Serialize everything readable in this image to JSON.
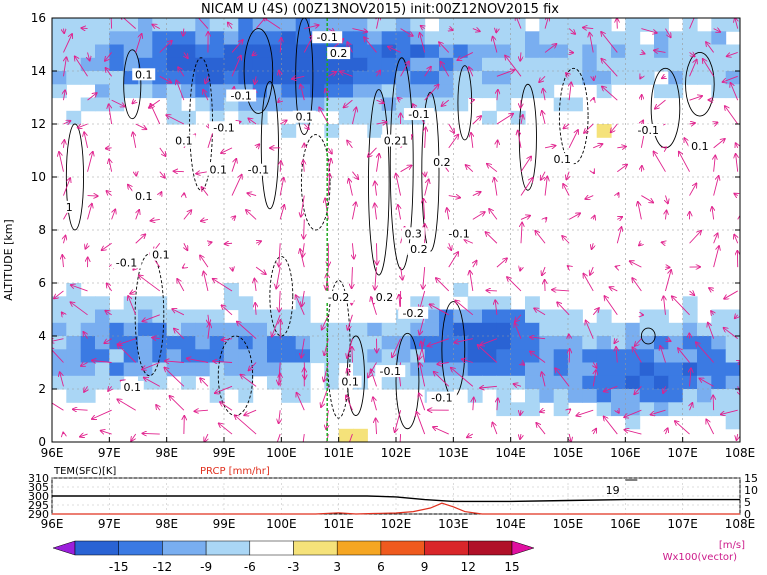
{
  "chart_data": [
    {
      "type": "heatmap",
      "title": "NICAM U (4S) (00Z13NOV2015) init:00Z12NOV2015 fix",
      "ylabel": "ALTITUDE [km]",
      "xlabel": "",
      "x_ticks": [
        "96E",
        "97E",
        "98E",
        "99E",
        "100E",
        "101E",
        "102E",
        "103E",
        "104E",
        "105E",
        "106E",
        "107E",
        "108E"
      ],
      "y_ticks": [
        "0",
        "2",
        "4",
        "6",
        "8",
        "10",
        "12",
        "14",
        "16"
      ],
      "xlim": [
        96,
        108
      ],
      "ylim": [
        0,
        16
      ],
      "grid": true,
      "vertical_marker_lon": 100.8,
      "contour_labels": [
        "0.1",
        "-0.1",
        "0.1",
        "-0.1",
        "0.1",
        "0.1",
        "-0.1",
        "0.2",
        "-0.1",
        "0.21",
        "0.2",
        "0.3",
        "-0.1",
        "0.2",
        "-0.1",
        "-0.1",
        "0.1",
        "0.1",
        "-0.2",
        "0.2",
        "-0.2",
        "-0.1",
        "0.1",
        "-0.1",
        "0.1",
        "1",
        "0.1",
        "0.1",
        "-0.1"
      ],
      "shaded_regions_description_values": {
        "units": "m/s",
        "levels": [
          -15,
          -12,
          -9,
          -6,
          -3,
          3,
          6,
          9,
          12,
          15
        ]
      }
    },
    {
      "type": "line",
      "series": [
        {
          "name": "TEM(SFC)[K]",
          "x": [
            96,
            97,
            98,
            99,
            100,
            101,
            101.5,
            102,
            102.5,
            103,
            103.5,
            104,
            105,
            106,
            107,
            108
          ],
          "values": [
            300,
            300,
            300,
            300,
            300,
            300,
            300,
            299.5,
            298,
            297,
            297,
            297,
            297.5,
            298,
            298,
            298
          ]
        },
        {
          "name": "PRCP [mm/hr]",
          "x": [
            96,
            100.6,
            101,
            101.3,
            101.6,
            102,
            102.3,
            102.6,
            102.8,
            103,
            103.2,
            103.5,
            104,
            108
          ],
          "values": [
            0,
            0,
            0.5,
            0,
            0.2,
            0.4,
            1.0,
            2.5,
            4.5,
            3.0,
            1.0,
            0,
            0,
            0
          ]
        }
      ],
      "left_axis_label": "TEM(SFC)[K]",
      "right_axis_label": "PRCP [mm/hr]",
      "left_ticks": [
        "310",
        "305",
        "300",
        "295",
        "290"
      ],
      "right_ticks": [
        "15",
        "10",
        "5",
        "0"
      ],
      "x_ticks": [
        "96E",
        "97E",
        "98E",
        "99E",
        "100E",
        "101E",
        "102E",
        "103E",
        "104E",
        "105E",
        "106E",
        "107E",
        "108E"
      ],
      "annotation": "19"
    }
  ],
  "colorbar": {
    "ticks": [
      "-15",
      "-12",
      "-9",
      "-6",
      "-3",
      "3",
      "6",
      "9",
      "12",
      "15"
    ],
    "unit": "[m/s]",
    "colors": [
      "#9b1fdb",
      "#2a63d4",
      "#3b7ae3",
      "#79aef0",
      "#aad6f5",
      "#ffffff",
      "#f5e27a",
      "#f5a623",
      "#ef5a1e",
      "#d9262a",
      "#b01028",
      "#e010a0"
    ],
    "vector_label": "Wx100(vector)"
  },
  "colors": {
    "vector": "#e0208c",
    "marker": "#22aa22",
    "frame": "#000000",
    "prcp_line": "#e0301e"
  }
}
